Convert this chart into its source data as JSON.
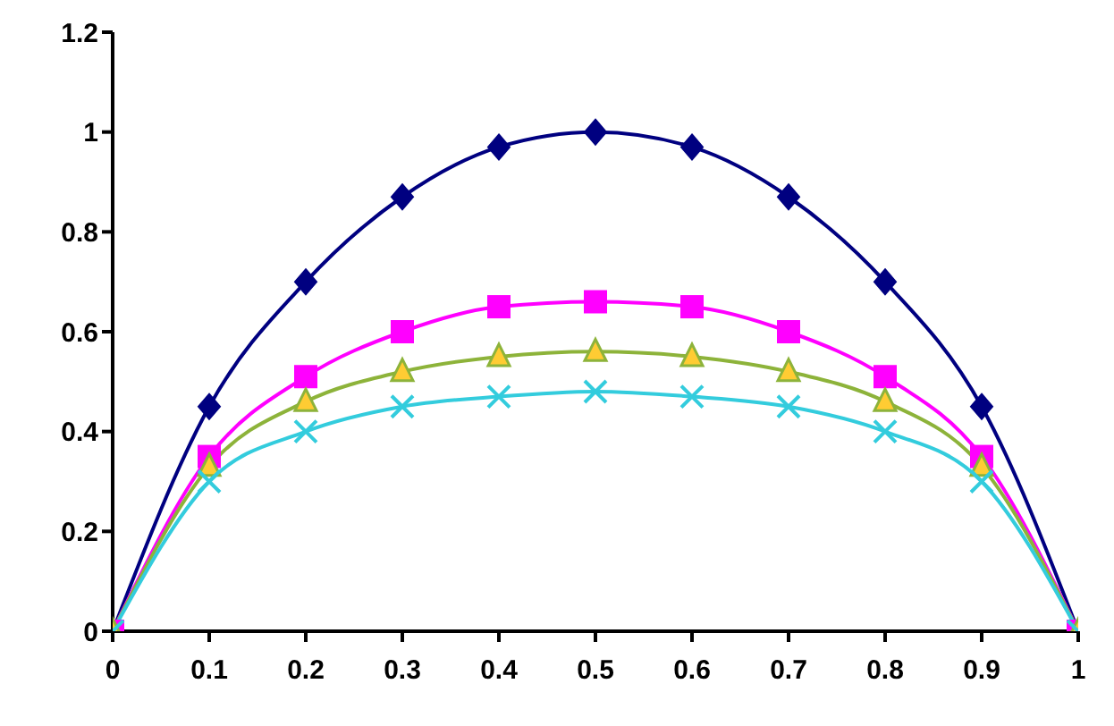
{
  "chart_data": {
    "type": "line",
    "x": [
      0,
      0.1,
      0.2,
      0.3,
      0.4,
      0.5,
      0.6,
      0.7,
      0.8,
      0.9,
      1
    ],
    "xlim": [
      0,
      1
    ],
    "xticks": [
      0,
      0.1,
      0.2,
      0.3,
      0.4,
      0.5,
      0.6,
      0.7,
      0.8,
      0.9,
      1
    ],
    "ylim": [
      0,
      1.2
    ],
    "yticks": [
      0,
      0.2,
      0.4,
      0.6,
      0.8,
      1,
      1.2
    ],
    "grid": false,
    "series": [
      {
        "color": "#000080",
        "marker": "diamond",
        "values": [
          0,
          0.45,
          0.7,
          0.87,
          0.97,
          1,
          0.97,
          0.87,
          0.7,
          0.45,
          0
        ]
      },
      {
        "color": "#ff00ff",
        "marker": "square",
        "values": [
          0,
          0.35,
          0.51,
          0.6,
          0.65,
          0.66,
          0.65,
          0.6,
          0.51,
          0.35,
          0
        ]
      },
      {
        "color": "#8db33a",
        "marker": "triangle",
        "values": [
          0,
          0.33,
          0.46,
          0.52,
          0.55,
          0.56,
          0.55,
          0.52,
          0.46,
          0.33,
          0
        ]
      },
      {
        "color": "#33ccdd",
        "marker": "cross",
        "values": [
          0,
          0.3,
          0.4,
          0.45,
          0.47,
          0.48,
          0.47,
          0.45,
          0.4,
          0.3,
          0
        ]
      }
    ]
  }
}
